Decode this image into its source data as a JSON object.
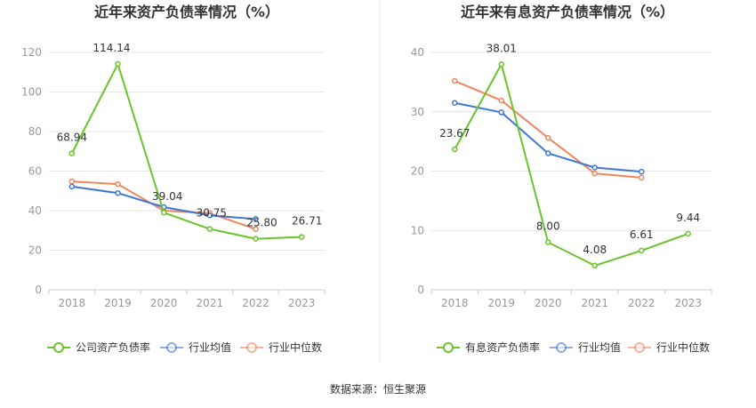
{
  "colors": {
    "company": "#6ac42a",
    "industry_avg": "#3f77d3",
    "industry_median": "#f0845c",
    "divider": "#e8e8e8",
    "grid": "#e6e6e6"
  },
  "source_text": "数据来源：恒生聚源",
  "chart_data": [
    {
      "type": "line",
      "title": "近年来资产负债率情况（%）",
      "categories": [
        "2018",
        "2019",
        "2020",
        "2021",
        "2022",
        "2023"
      ],
      "ylim": [
        0,
        120
      ],
      "yticks": [
        0,
        20,
        40,
        60,
        80,
        100,
        120
      ],
      "grid": true,
      "legend_position": "bottom",
      "series": [
        {
          "name": "公司资产负债率",
          "color_key": "company",
          "values": [
            68.94,
            114.14,
            39.04,
            30.75,
            25.8,
            26.71
          ],
          "labels": [
            "68.94",
            "114.14",
            "39.04",
            "30.75",
            "25.80",
            "26.71"
          ]
        },
        {
          "name": "行业均值",
          "color_key": "industry_avg",
          "values": [
            52.2,
            48.9,
            41.8,
            37.6,
            35.8,
            null
          ]
        },
        {
          "name": "行业中位数",
          "color_key": "industry_median",
          "values": [
            54.8,
            53.4,
            40.0,
            38.7,
            30.7,
            null
          ]
        }
      ]
    },
    {
      "type": "line",
      "title": "近年来有息资产负债率情况（%）",
      "categories": [
        "2018",
        "2019",
        "2020",
        "2021",
        "2022",
        "2023"
      ],
      "ylim": [
        0,
        40
      ],
      "yticks": [
        0,
        10,
        20,
        30,
        40
      ],
      "grid": true,
      "legend_position": "bottom",
      "series": [
        {
          "name": "有息资产负债率",
          "color_key": "company",
          "values": [
            23.67,
            38.01,
            8.0,
            4.08,
            6.61,
            9.44
          ],
          "labels": [
            "23.67",
            "38.01",
            "8.00",
            "4.08",
            "6.61",
            "9.44"
          ]
        },
        {
          "name": "行业均值",
          "color_key": "industry_avg",
          "values": [
            31.5,
            29.9,
            23.0,
            20.6,
            19.9,
            null
          ]
        },
        {
          "name": "行业中位数",
          "color_key": "industry_median",
          "values": [
            35.2,
            31.9,
            25.6,
            19.6,
            18.9,
            null
          ]
        }
      ]
    }
  ]
}
